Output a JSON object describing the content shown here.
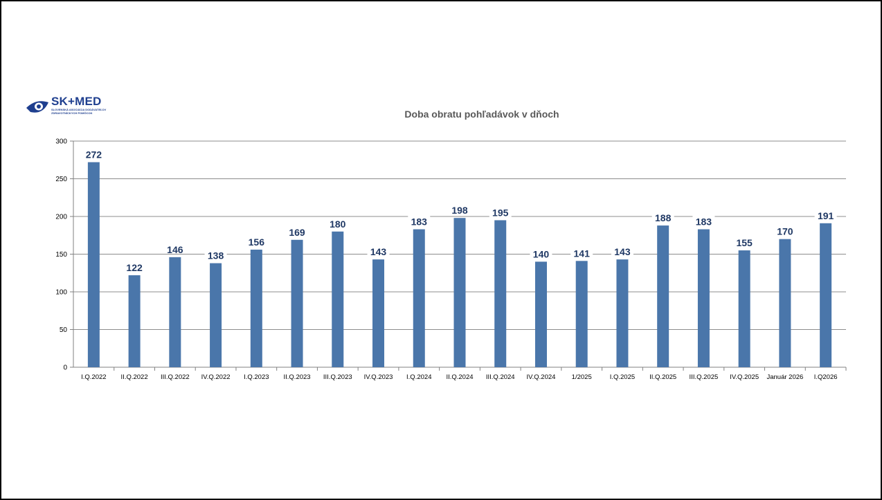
{
  "logo": {
    "name": "SK+MED",
    "subtitle_line1": "SLOVENSKÁ ASOCIÁCIA DODÁVATEĽOV",
    "subtitle_line2": "ZDRAVOTNÍCKYCH POMÔCOK"
  },
  "colors": {
    "bar": "#4a76aa",
    "gridline": "#8c8c8c",
    "data_label": "#1f3864",
    "logo": "#1f3f8f"
  },
  "chart_data": {
    "type": "bar",
    "title": "Doba obratu pohľadávok v dňoch",
    "xlabel": "",
    "ylabel": "",
    "ylim": [
      0,
      300
    ],
    "yticks": [
      0,
      50,
      100,
      150,
      200,
      250,
      300
    ],
    "grid": true,
    "categories": [
      "I.Q.2022",
      "II.Q.2022",
      "III.Q.2022",
      "IV.Q.2022",
      "I.Q.2023",
      "II.Q.2023",
      "III.Q.2023",
      "IV.Q.2023",
      "I.Q.2024",
      "II.Q.2024",
      "III.Q.2024",
      "IV.Q.2024",
      "1/2025",
      "I.Q.2025",
      "II.Q.2025",
      "III.Q.2025",
      "IV.Q.2025",
      "Január 2026",
      "I.Q2026"
    ],
    "values": [
      272,
      122,
      146,
      138,
      156,
      169,
      180,
      143,
      183,
      198,
      195,
      140,
      141,
      143,
      188,
      183,
      155,
      170,
      191
    ],
    "data_labels": true
  }
}
